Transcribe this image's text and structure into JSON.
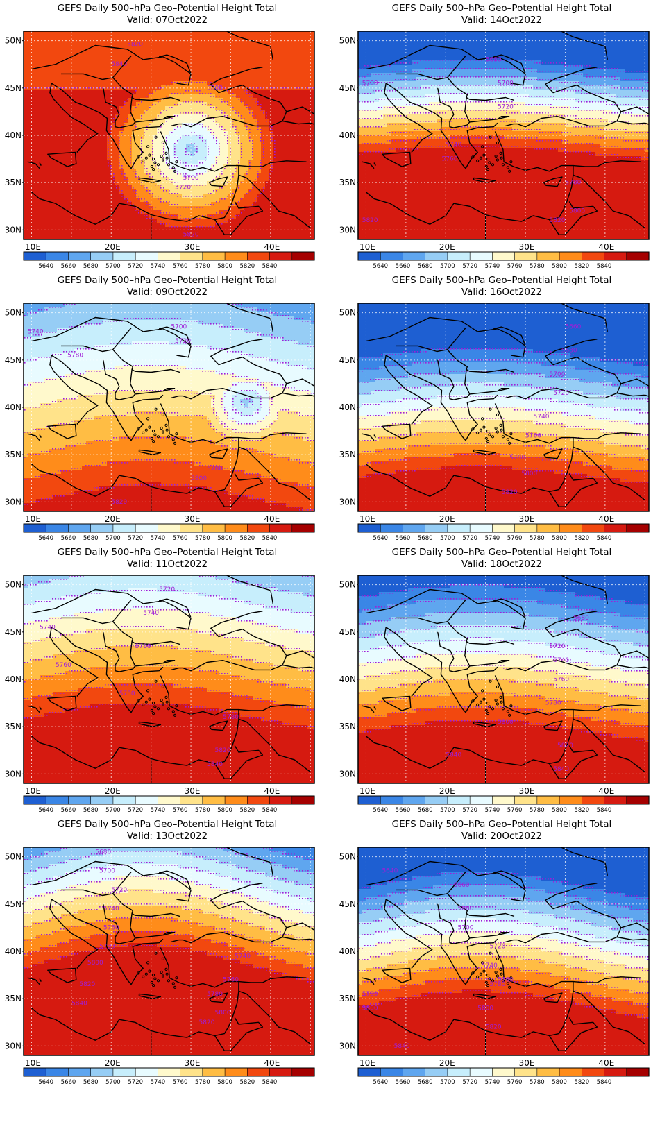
{
  "common": {
    "title": "GEFS Daily 500–hPa Geo–Potential Height Total",
    "valid_prefix": "Valid: ",
    "lat_labels": [
      "50N",
      "45N",
      "40N",
      "35N",
      "30N"
    ],
    "lon_labels": [
      "10E",
      "20E",
      "30E",
      "40E"
    ],
    "colorbar_labels": [
      "5640",
      "5660",
      "5680",
      "5700",
      "5720",
      "5740",
      "5760",
      "5780",
      "5800",
      "5820",
      "5840"
    ],
    "colorbar_colors": [
      "#1e5fd2",
      "#3a86e6",
      "#5fa6ef",
      "#96cdf5",
      "#c7eefc",
      "#e8fbff",
      "#fff9cc",
      "#ffe38a",
      "#ffbd44",
      "#ff8c1a",
      "#f2480f",
      "#d61a10",
      "#a50000"
    ],
    "contour_color": "#a01ed8",
    "border_color": "#000000"
  },
  "panels": [
    {
      "id": "p07",
      "valid": "07Oct2022",
      "pattern": "low",
      "low": {
        "lon": 30,
        "lat": 38.5,
        "center": 5690,
        "gradient": 18
      },
      "bg": {
        "base": 5860,
        "grad": 0
      },
      "contour_labels": [
        {
          "text": "5820",
          "lon": 23,
          "lat": 49.6
        },
        {
          "text": "5840",
          "lon": 21,
          "lat": 47.5
        },
        {
          "text": "5800",
          "lon": 33,
          "lat": 45
        },
        {
          "text": "5700",
          "lon": 30,
          "lat": 35.5
        },
        {
          "text": "5720",
          "lon": 29,
          "lat": 34.5
        },
        {
          "text": "5820",
          "lon": 30,
          "lat": 29.5
        }
      ]
    },
    {
      "id": "p14",
      "valid": "14Oct2022",
      "pattern": "zonal",
      "levels_y": [
        5640,
        5660,
        5680,
        5700,
        5720,
        5740,
        5760,
        5780,
        5800,
        5820,
        5840,
        5860
      ],
      "base": 5700,
      "lat0": 44.5,
      "grad": 22,
      "wave": 0.8,
      "contour_labels": [
        {
          "text": "5680",
          "lon": 26,
          "lat": 48
        },
        {
          "text": "5700",
          "lon": 10.5,
          "lat": 45.5
        },
        {
          "text": "5700",
          "lon": 27.5,
          "lat": 45.5
        },
        {
          "text": "5720",
          "lon": 27.5,
          "lat": 43
        },
        {
          "text": "5740",
          "lon": 21,
          "lat": 39
        },
        {
          "text": "5760",
          "lon": 20.5,
          "lat": 37.5
        },
        {
          "text": "5780",
          "lon": 36,
          "lat": 35
        },
        {
          "text": "5800",
          "lon": 36.5,
          "lat": 32
        },
        {
          "text": "5820",
          "lon": 34,
          "lat": 31
        },
        {
          "text": "5820",
          "lon": 10.5,
          "lat": 31
        }
      ]
    },
    {
      "id": "p09",
      "valid": "09Oct2022",
      "pattern": "low2",
      "low": {
        "lon": 37,
        "lat": 40.5,
        "center": 5690,
        "gradient": 22
      },
      "contour_labels": [
        {
          "text": "5740",
          "lon": 10.5,
          "lat": 48
        },
        {
          "text": "5700",
          "lon": 28.5,
          "lat": 48.5
        },
        {
          "text": "5720",
          "lon": 29,
          "lat": 47
        },
        {
          "text": "5780",
          "lon": 15.5,
          "lat": 45.5
        },
        {
          "text": "5780",
          "lon": 33,
          "lat": 33.5
        },
        {
          "text": "5800",
          "lon": 31,
          "lat": 32.5
        },
        {
          "text": "5820",
          "lon": 21,
          "lat": 30
        }
      ]
    },
    {
      "id": "p16",
      "valid": "16Oct2022",
      "pattern": "zonal",
      "base": 5700,
      "lat0": 41.5,
      "grad": 16,
      "wave": 1.0,
      "contour_labels": [
        {
          "text": "5660",
          "lon": 36,
          "lat": 48.5
        },
        {
          "text": "5680",
          "lon": 35.5,
          "lat": 46
        },
        {
          "text": "5700",
          "lon": 34,
          "lat": 43.5
        },
        {
          "text": "5720",
          "lon": 34.5,
          "lat": 41.5
        },
        {
          "text": "5740",
          "lon": 32,
          "lat": 39
        },
        {
          "text": "5760",
          "lon": 31,
          "lat": 37
        },
        {
          "text": "5780",
          "lon": 29,
          "lat": 34.7
        },
        {
          "text": "5800",
          "lon": 30.5,
          "lat": 33
        },
        {
          "text": "5820",
          "lon": 28,
          "lat": 31
        }
      ]
    },
    {
      "id": "p11",
      "valid": "11Oct2022",
      "pattern": "zonal",
      "base": 5740,
      "lat0": 46,
      "grad": 10,
      "wave": 1.5,
      "contour_labels": [
        {
          "text": "5720",
          "lon": 27,
          "lat": 49.5
        },
        {
          "text": "5740",
          "lon": 25,
          "lat": 47
        },
        {
          "text": "5740",
          "lon": 12,
          "lat": 45.5
        },
        {
          "text": "5760",
          "lon": 24,
          "lat": 43.5
        },
        {
          "text": "5760",
          "lon": 14,
          "lat": 41.5
        },
        {
          "text": "5780",
          "lon": 22,
          "lat": 38.5
        },
        {
          "text": "5780",
          "lon": 35,
          "lat": 36
        },
        {
          "text": "5820",
          "lon": 34,
          "lat": 32.5
        },
        {
          "text": "5840",
          "lon": 33,
          "lat": 31
        }
      ]
    },
    {
      "id": "p18",
      "valid": "18Oct2022",
      "pattern": "zonal",
      "base": 5700,
      "lat0": 44.5,
      "grad": 14,
      "wave": 1.2,
      "contour_labels": [
        {
          "text": "5680",
          "lon": 37,
          "lat": 46.5
        },
        {
          "text": "5720",
          "lon": 34,
          "lat": 43.5
        },
        {
          "text": "5740",
          "lon": 34.5,
          "lat": 42
        },
        {
          "text": "5760",
          "lon": 34.5,
          "lat": 40
        },
        {
          "text": "5780",
          "lon": 33.5,
          "lat": 37.5
        },
        {
          "text": "5800",
          "lon": 27.5,
          "lat": 35.5
        },
        {
          "text": "5820",
          "lon": 35,
          "lat": 33
        },
        {
          "text": "5840",
          "lon": 21,
          "lat": 32
        },
        {
          "text": "5840",
          "lon": 34.5,
          "lat": 30.5
        }
      ]
    },
    {
      "id": "p13",
      "valid": "13Oct2022",
      "pattern": "zonal",
      "base": 5700,
      "lat0": 48.5,
      "grad": 14,
      "wave": 2.2,
      "contour_labels": [
        {
          "text": "5680",
          "lon": 19,
          "lat": 50.5
        },
        {
          "text": "5700",
          "lon": 19.5,
          "lat": 48.5
        },
        {
          "text": "5720",
          "lon": 21,
          "lat": 46.5
        },
        {
          "text": "5740",
          "lon": 20,
          "lat": 44.5
        },
        {
          "text": "5760",
          "lon": 20,
          "lat": 42.5
        },
        {
          "text": "5780",
          "lon": 19.5,
          "lat": 40.5
        },
        {
          "text": "5740",
          "lon": 36.5,
          "lat": 39.5
        },
        {
          "text": "5800",
          "lon": 18,
          "lat": 38.8
        },
        {
          "text": "5760",
          "lon": 35,
          "lat": 37
        },
        {
          "text": "5820",
          "lon": 17,
          "lat": 36.5
        },
        {
          "text": "5780",
          "lon": 33,
          "lat": 35.5
        },
        {
          "text": "5800",
          "lon": 34,
          "lat": 33.5
        },
        {
          "text": "5840",
          "lon": 16,
          "lat": 34.5
        },
        {
          "text": "5820",
          "lon": 32,
          "lat": 32.5
        }
      ]
    },
    {
      "id": "p20",
      "valid": "20Oct2022",
      "pattern": "zonal",
      "base": 5700,
      "lat0": 43,
      "grad": 16,
      "wave": 1.6,
      "contour_labels": [
        {
          "text": "5640",
          "lon": 13,
          "lat": 48.5
        },
        {
          "text": "5660",
          "lon": 22,
          "lat": 47
        },
        {
          "text": "5680",
          "lon": 22.5,
          "lat": 44.5
        },
        {
          "text": "5700",
          "lon": 22.5,
          "lat": 42.5
        },
        {
          "text": "5720",
          "lon": 26.5,
          "lat": 40.5
        },
        {
          "text": "5740",
          "lon": 25.5,
          "lat": 38.5
        },
        {
          "text": "5760",
          "lon": 27.5,
          "lat": 37
        },
        {
          "text": "5780",
          "lon": 10.5,
          "lat": 35.5
        },
        {
          "text": "5780",
          "lon": 26.5,
          "lat": 36.5
        },
        {
          "text": "5800",
          "lon": 10.5,
          "lat": 34
        },
        {
          "text": "5800",
          "lon": 25,
          "lat": 34
        },
        {
          "text": "5820",
          "lon": 26,
          "lat": 32
        },
        {
          "text": "5840",
          "lon": 14.5,
          "lat": 30
        }
      ]
    }
  ]
}
